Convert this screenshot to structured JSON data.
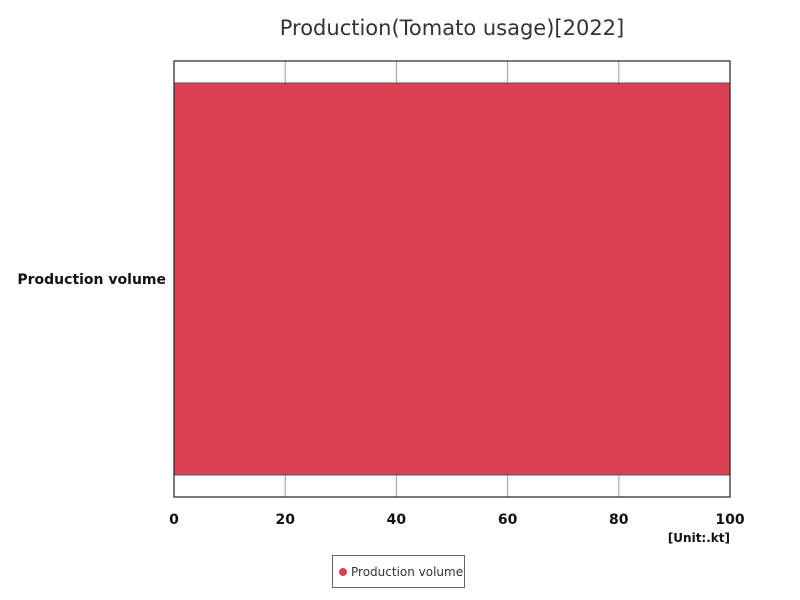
{
  "chart_data": {
    "type": "bar",
    "orientation": "horizontal",
    "title": "Production(Tomato usage)[2022]",
    "categories": [
      "Production volume"
    ],
    "series": [
      {
        "name": "Production volume",
        "values": [
          100
        ]
      }
    ],
    "xlim": [
      0,
      100
    ],
    "x_ticks": [
      "0",
      "20",
      "40",
      "60",
      "80",
      "100"
    ],
    "unit_label": "[Unit:.kt]",
    "grid": true,
    "legend_position": "bottom",
    "colors": {
      "bar": "#DB4052",
      "grid": "#999999",
      "frame": "#222222"
    }
  }
}
